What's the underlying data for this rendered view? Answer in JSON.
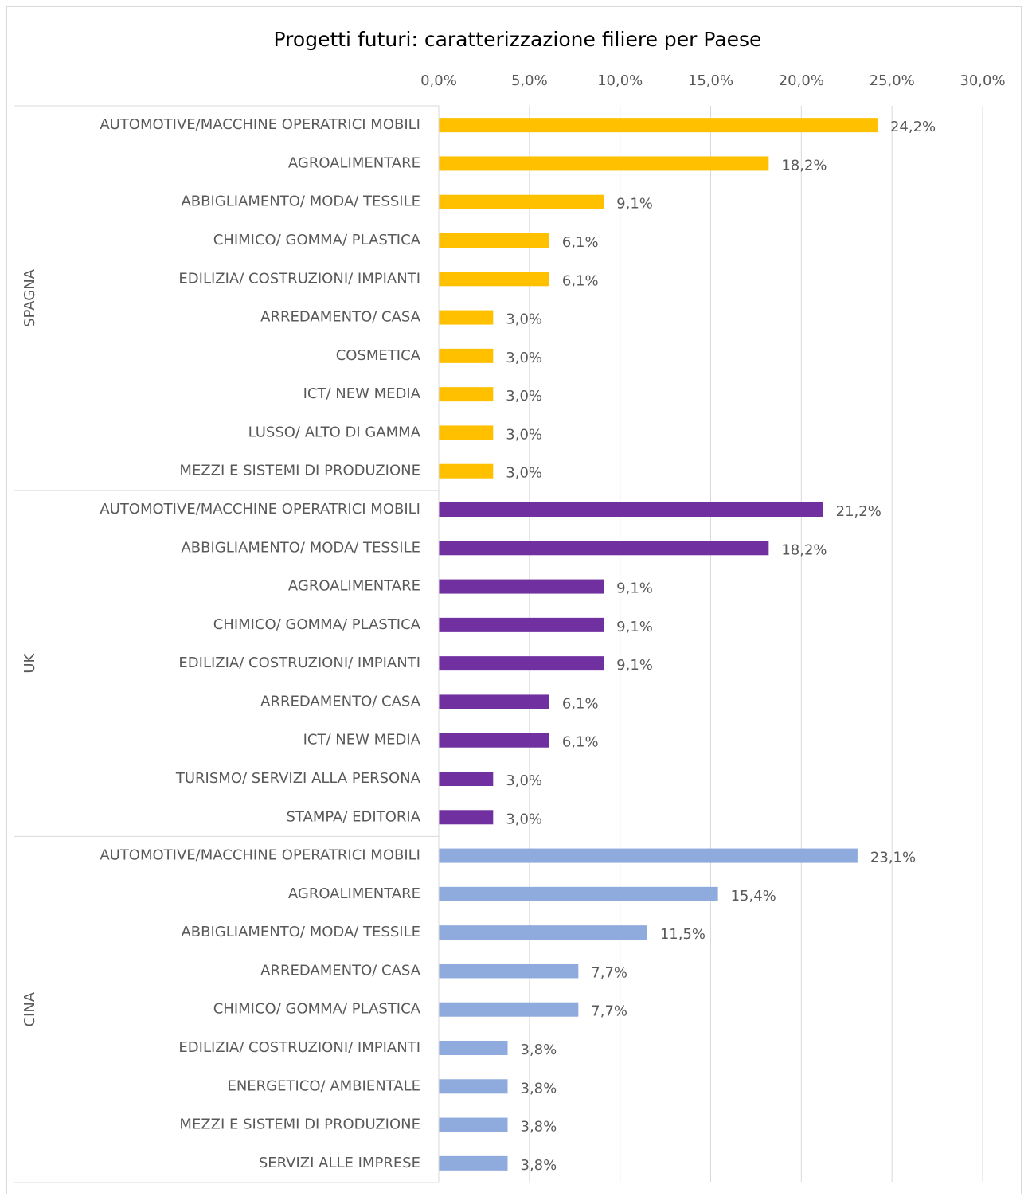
{
  "chart_data": {
    "type": "bar",
    "orientation": "horizontal",
    "title": "Progetti futuri: caratterizzazione filiere per Paese",
    "xlim": [
      0,
      30
    ],
    "xticks": [
      {
        "value": 0,
        "label": "0,0%"
      },
      {
        "value": 5,
        "label": "5,0%"
      },
      {
        "value": 10,
        "label": "10,0%"
      },
      {
        "value": 15,
        "label": "15,0%"
      },
      {
        "value": 20,
        "label": "20,0%"
      },
      {
        "value": 25,
        "label": "25,0%"
      },
      {
        "value": 30,
        "label": "30,0%"
      }
    ],
    "grid": true,
    "groups": [
      {
        "name": "SPAGNA",
        "color": "#ffc000",
        "categories": [
          "AUTOMOTIVE/MACCHINE OPERATRICI MOBILI",
          "AGROALIMENTARE",
          "ABBIGLIAMENTO/ MODA/ TESSILE",
          "CHIMICO/ GOMMA/ PLASTICA",
          "EDILIZIA/ COSTRUZIONI/ IMPIANTI",
          "ARREDAMENTO/ CASA",
          "COSMETICA",
          "ICT/ NEW MEDIA",
          "LUSSO/ ALTO DI GAMMA",
          "MEZZI E SISTEMI DI PRODUZIONE"
        ],
        "values": [
          24.2,
          18.2,
          9.1,
          6.1,
          6.1,
          3.0,
          3.0,
          3.0,
          3.0,
          3.0
        ],
        "value_labels": [
          "24,2%",
          "18,2%",
          "9,1%",
          "6,1%",
          "6,1%",
          "3,0%",
          "3,0%",
          "3,0%",
          "3,0%",
          "3,0%"
        ]
      },
      {
        "name": "UK",
        "color": "#7030a0",
        "categories": [
          "AUTOMOTIVE/MACCHINE OPERATRICI MOBILI",
          "ABBIGLIAMENTO/ MODA/ TESSILE",
          "AGROALIMENTARE",
          "CHIMICO/ GOMMA/ PLASTICA",
          "EDILIZIA/ COSTRUZIONI/ IMPIANTI",
          "ARREDAMENTO/ CASA",
          "ICT/ NEW MEDIA",
          "TURISMO/ SERVIZI ALLA PERSONA",
          "STAMPA/ EDITORIA"
        ],
        "values": [
          21.2,
          18.2,
          9.1,
          9.1,
          9.1,
          6.1,
          6.1,
          3.0,
          3.0
        ],
        "value_labels": [
          "21,2%",
          "18,2%",
          "9,1%",
          "9,1%",
          "9,1%",
          "6,1%",
          "6,1%",
          "3,0%",
          "3,0%"
        ]
      },
      {
        "name": "CINA",
        "color": "#8faadc",
        "categories": [
          "AUTOMOTIVE/MACCHINE OPERATRICI MOBILI",
          "AGROALIMENTARE",
          "ABBIGLIAMENTO/ MODA/ TESSILE",
          "ARREDAMENTO/ CASA",
          "CHIMICO/ GOMMA/ PLASTICA",
          "EDILIZIA/ COSTRUZIONI/ IMPIANTI",
          "ENERGETICO/ AMBIENTALE",
          "MEZZI E SISTEMI DI PRODUZIONE",
          "SERVIZI ALLE IMPRESE"
        ],
        "values": [
          23.1,
          15.4,
          11.5,
          7.7,
          7.7,
          3.8,
          3.8,
          3.8,
          3.8
        ],
        "value_labels": [
          "23,1%",
          "15,4%",
          "11,5%",
          "7,7%",
          "7,7%",
          "3,8%",
          "3,8%",
          "3,8%",
          "3,8%"
        ]
      }
    ]
  }
}
